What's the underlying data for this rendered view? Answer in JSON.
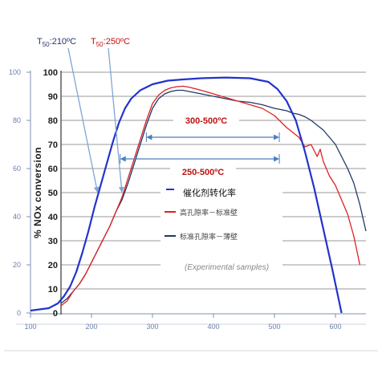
{
  "chart_data": {
    "type": "line",
    "title": "",
    "ylabel": "% NOx conversion",
    "xlabel": "",
    "xlim": [
      100,
      650
    ],
    "ylim": [
      0,
      100
    ],
    "x_ticks": [
      "100",
      "200",
      "300",
      "400",
      "500",
      "600"
    ],
    "y_ticks_outer": [
      "0",
      "20",
      "40",
      "60",
      "80",
      "100"
    ],
    "y_ticks_inner": [
      "0",
      "10",
      "20",
      "30",
      "40",
      "50",
      "60",
      "70",
      "80",
      "90",
      "100"
    ],
    "grid": true,
    "legend_position": "center-right",
    "legend": [
      {
        "label": "催化剂转化率",
        "color": "#2233cc"
      },
      {
        "label": "高孔隙率－标准壁",
        "color": "#e02020"
      },
      {
        "label": "标准孔隙率－薄壁",
        "color": "#1f3a6a"
      }
    ],
    "legend_note": "(Experimental samples)",
    "annotations": {
      "t50_blue": "T",
      "t50_blue_sub": "50",
      "t50_blue_val": ":210ºC",
      "t50_red": "T",
      "t50_red_sub": "50",
      "t50_red_val": ":250ºC",
      "range_300_500": "300-500ºC",
      "range_250_500": "250-500ºC"
    },
    "ranges": [
      {
        "label": "300-500ºC",
        "x0": 290,
        "x1": 508,
        "y": 73
      },
      {
        "label": "250-500ºC",
        "x0": 247,
        "x1": 508,
        "y": 64
      }
    ],
    "t50_points": [
      {
        "x": 210,
        "y": 50,
        "color": "#27336b"
      },
      {
        "x": 250,
        "y": 50,
        "color": "#c01010"
      }
    ],
    "series": [
      {
        "name": "催化剂转化率",
        "color": "#2233cc",
        "x": [
          100,
          115,
          130,
          145,
          155,
          165,
          175,
          185,
          195,
          205,
          215,
          225,
          235,
          245,
          255,
          265,
          280,
          300,
          325,
          350,
          380,
          420,
          460,
          490,
          505,
          520,
          535,
          550,
          565,
          580,
          595,
          605,
          610
        ],
        "y": [
          1,
          1.5,
          2,
          4,
          7,
          11,
          17,
          25,
          34,
          44,
          53,
          62,
          71,
          79,
          85,
          89,
          92.5,
          95,
          96.5,
          97,
          97.5,
          97.8,
          97.5,
          96,
          93,
          88,
          80,
          67,
          52,
          35,
          18,
          6,
          0
        ]
      },
      {
        "name": "高孔隙率－标准壁",
        "color": "#e02020",
        "x": [
          150,
          160,
          170,
          180,
          190,
          200,
          210,
          220,
          230,
          240,
          250,
          260,
          270,
          280,
          290,
          300,
          310,
          320,
          330,
          340,
          350,
          360,
          380,
          400,
          420,
          440,
          460,
          480,
          500,
          510,
          520,
          530,
          540,
          550,
          560,
          570,
          575,
          580,
          590,
          600,
          610,
          620,
          630,
          640
        ],
        "y": [
          3,
          5,
          9,
          12,
          16,
          21,
          26,
          31,
          36,
          42,
          48,
          56,
          64,
          72,
          80,
          87,
          90.5,
          92.5,
          93.5,
          94,
          94.2,
          93.8,
          92.5,
          91,
          89.5,
          88,
          86.5,
          85,
          82,
          79.5,
          77,
          75,
          73,
          69,
          70,
          65,
          68,
          63,
          57,
          53,
          47,
          41,
          32,
          20
        ]
      },
      {
        "name": "标准孔隙率－薄壁",
        "color": "#1f3a6a",
        "x": [
          150,
          160,
          170,
          180,
          190,
          200,
          210,
          220,
          230,
          240,
          250,
          260,
          270,
          280,
          290,
          300,
          310,
          320,
          330,
          340,
          350,
          360,
          380,
          400,
          420,
          440,
          460,
          480,
          500,
          520,
          530,
          540,
          550,
          560,
          570,
          580,
          590,
          600,
          610,
          620,
          630,
          640,
          650
        ],
        "y": [
          4,
          6,
          9,
          12,
          16,
          21,
          26,
          31,
          36,
          42,
          47,
          54,
          62,
          70,
          78,
          85,
          89,
          91,
          92,
          92.5,
          92.5,
          92,
          91,
          90,
          89,
          88,
          87.5,
          86.5,
          85,
          84,
          83,
          82.5,
          81.5,
          80,
          78,
          76,
          73,
          70,
          65,
          60,
          54,
          45,
          34
        ]
      }
    ]
  }
}
